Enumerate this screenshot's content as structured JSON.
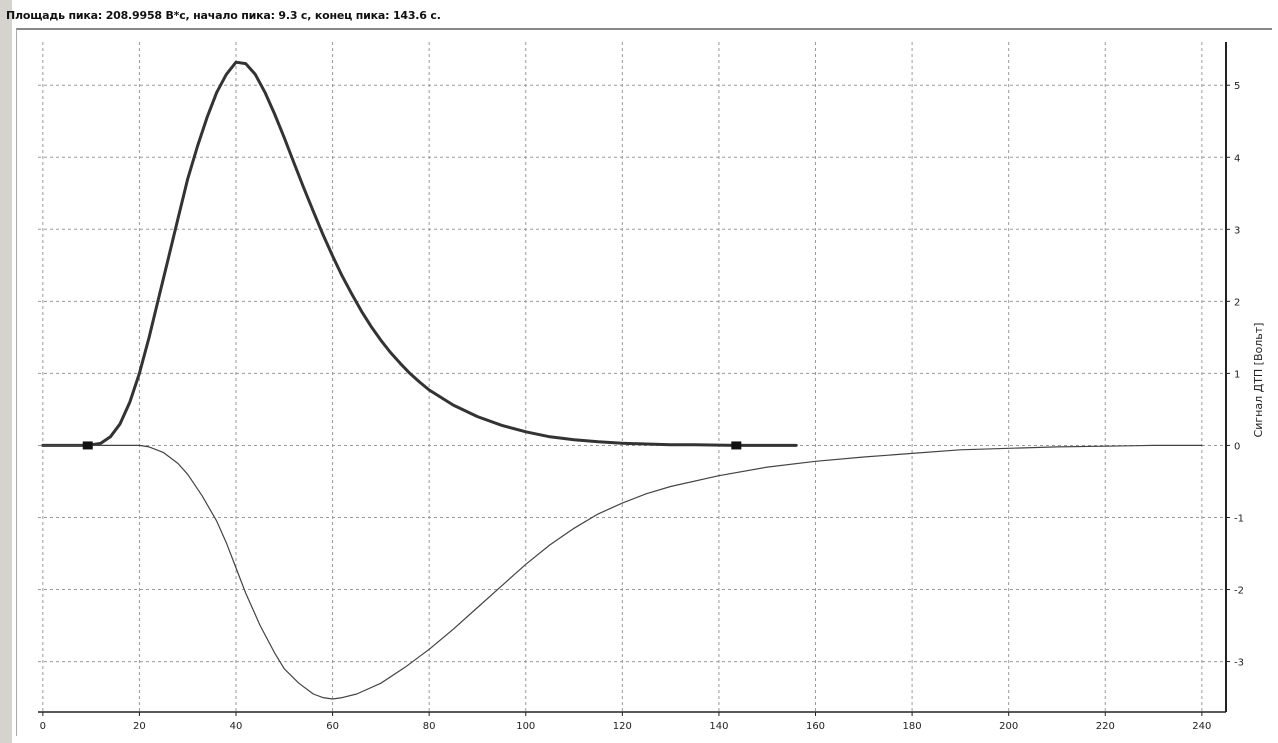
{
  "status_text": "Площадь пика: 208.9958 В*с, начало пика: 9.3 с, конец пика: 143.6 с.",
  "chart_data": {
    "type": "line",
    "title": "",
    "xlabel": "",
    "ylabel": "Сигнал ДТП [Вольт]",
    "xlim": [
      -1,
      245
    ],
    "ylim": [
      -3.7,
      5.6
    ],
    "x_ticks": [
      0,
      20,
      40,
      60,
      80,
      100,
      120,
      140,
      160,
      180,
      200,
      220,
      240
    ],
    "y_ticks": [
      -3,
      -2,
      -1,
      0,
      1,
      2,
      3,
      4,
      5
    ],
    "grid": true,
    "series": [
      {
        "color": "#333333",
        "x": [
          0,
          5,
          9.3,
          12,
          14,
          16,
          18,
          20,
          22,
          24,
          26,
          28,
          30,
          32,
          34,
          36,
          38,
          40,
          42,
          44,
          46,
          48,
          50,
          52,
          54,
          56,
          58,
          60,
          62,
          64,
          66,
          68,
          70,
          72,
          74,
          76,
          78,
          80,
          85,
          90,
          95,
          100,
          105,
          110,
          115,
          120,
          125,
          130,
          135,
          140,
          143.6,
          150,
          156
        ],
        "y": [
          0,
          0,
          0,
          0.03,
          0.12,
          0.3,
          0.6,
          1.0,
          1.5,
          2.05,
          2.6,
          3.15,
          3.7,
          4.15,
          4.55,
          4.9,
          5.15,
          5.32,
          5.3,
          5.15,
          4.9,
          4.6,
          4.27,
          3.92,
          3.58,
          3.25,
          2.93,
          2.63,
          2.35,
          2.1,
          1.86,
          1.65,
          1.46,
          1.29,
          1.14,
          1.0,
          0.88,
          0.77,
          0.56,
          0.4,
          0.28,
          0.19,
          0.12,
          0.08,
          0.05,
          0.03,
          0.02,
          0.01,
          0.01,
          0.005,
          0,
          0,
          0
        ]
      },
      {
        "color": "#444444",
        "x": [
          0,
          10,
          20,
          22,
          25,
          28,
          30,
          33,
          36,
          38,
          40,
          42,
          45,
          48,
          50,
          53,
          56,
          58,
          60,
          62,
          65,
          70,
          75,
          80,
          85,
          90,
          95,
          100,
          105,
          110,
          115,
          120,
          125,
          130,
          140,
          150,
          160,
          170,
          180,
          190,
          200,
          210,
          220,
          230,
          240
        ],
        "y": [
          0,
          0,
          0,
          -0.02,
          -0.1,
          -0.25,
          -0.4,
          -0.7,
          -1.05,
          -1.35,
          -1.7,
          -2.05,
          -2.5,
          -2.88,
          -3.1,
          -3.3,
          -3.45,
          -3.5,
          -3.52,
          -3.5,
          -3.45,
          -3.3,
          -3.08,
          -2.83,
          -2.55,
          -2.25,
          -1.95,
          -1.65,
          -1.38,
          -1.15,
          -0.95,
          -0.8,
          -0.67,
          -0.57,
          -0.42,
          -0.3,
          -0.22,
          -0.16,
          -0.11,
          -0.06,
          -0.04,
          -0.02,
          -0.01,
          0,
          0
        ]
      }
    ],
    "markers": [
      {
        "x": 9.3,
        "y": 0
      },
      {
        "x": 143.6,
        "y": 0
      }
    ]
  }
}
